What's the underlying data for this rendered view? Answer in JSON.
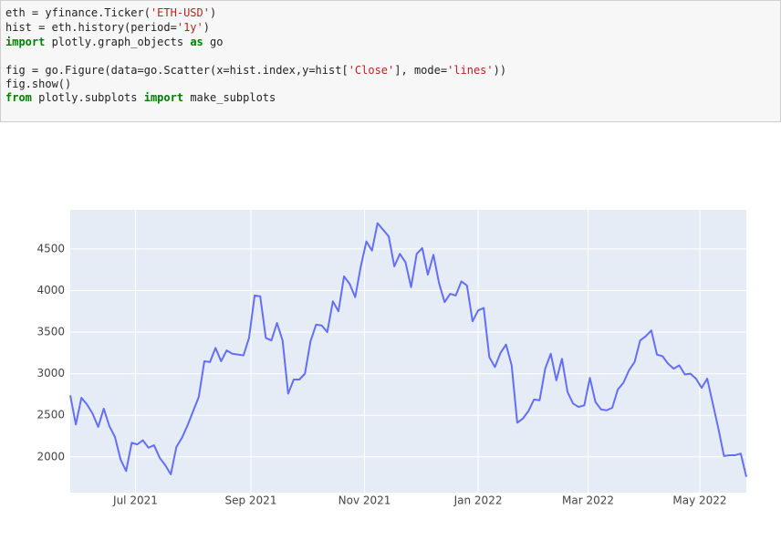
{
  "code": {
    "lines": [
      [
        "eth = yfinance.Ticker(",
        "'ETH-USD'",
        ")"
      ],
      [
        "hist = eth.history(period=",
        "'1y'",
        ")"
      ],
      [
        "import",
        " plotly.graph_objects ",
        "as",
        " go"
      ],
      [
        "fig = go.Figure(data=go.Scatter(x=hist.index,y=hist[",
        "'Close'",
        "], mode=",
        "'lines'",
        "))"
      ],
      [
        "fig.show()"
      ],
      [
        "from",
        " plotly.subplots ",
        "import",
        " make_subplots"
      ]
    ]
  },
  "chart_data": {
    "type": "line",
    "color": "#636efa",
    "grid": true,
    "xlim": [
      0,
      121
    ],
    "xticks": [
      {
        "value": 11.67,
        "label": "Jul 2021"
      },
      {
        "value": 32.33,
        "label": "Sep 2021"
      },
      {
        "value": 52.67,
        "label": "Nov 2021"
      },
      {
        "value": 73,
        "label": "Jan 2022"
      },
      {
        "value": 92.67,
        "label": "Mar 2022"
      },
      {
        "value": 112.67,
        "label": "May 2022"
      }
    ],
    "ylim": [
      1570,
      4970
    ],
    "yticks": [
      2000,
      2500,
      3000,
      3500,
      4000,
      4500
    ],
    "values": [
      2740,
      2390,
      2710,
      2630,
      2520,
      2360,
      2580,
      2370,
      2240,
      1970,
      1830,
      2170,
      2150,
      2200,
      2110,
      2140,
      1990,
      1900,
      1790,
      2120,
      2230,
      2380,
      2550,
      2720,
      3150,
      3140,
      3310,
      3150,
      3280,
      3240,
      3230,
      3220,
      3430,
      3940,
      3930,
      3430,
      3400,
      3610,
      3400,
      2760,
      2930,
      2930,
      3000,
      3390,
      3590,
      3580,
      3500,
      3870,
      3750,
      4170,
      4080,
      3920,
      4290,
      4590,
      4480,
      4810,
      4730,
      4650,
      4290,
      4440,
      4340,
      4040,
      4440,
      4510,
      4190,
      4430,
      4090,
      3860,
      3960,
      3940,
      4110,
      4060,
      3630,
      3760,
      3790,
      3200,
      3080,
      3250,
      3350,
      3100,
      2410,
      2460,
      2550,
      2690,
      2680,
      3060,
      3240,
      2920,
      3180,
      2780,
      2640,
      2600,
      2620,
      2950,
      2660,
      2570,
      2560,
      2590,
      2810,
      2890,
      3040,
      3140,
      3400,
      3450,
      3520,
      3230,
      3210,
      3120,
      3060,
      3100,
      2990,
      3000,
      2940,
      2830,
      2940,
      2640,
      2340,
      2010,
      2020,
      2020,
      2040,
      1760
    ]
  }
}
